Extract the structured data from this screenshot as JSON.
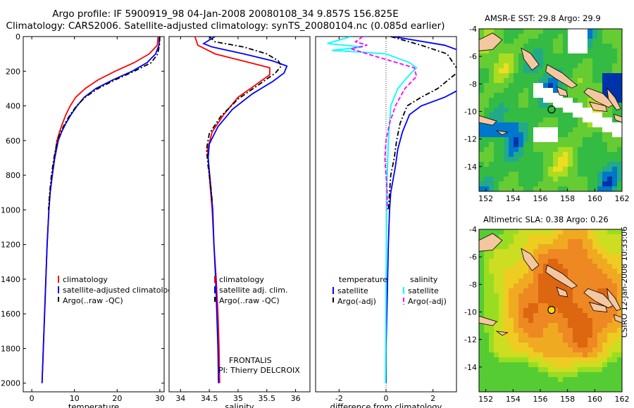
{
  "header": {
    "line1": "Argo profile: IF 5900919_98 04-Jan-2008 20080108_34 9.857S 156.825E",
    "line2": "Climatology: CARS2006. Satellite-adjusted climatology: synTS_20080104.nc (0.085d earlier)"
  },
  "colors": {
    "climatology": "#ff0000",
    "satellite": "#0000ff",
    "argo": "#000000",
    "sat_cyan": "#00ffff",
    "argo_magenta": "#ff00ff"
  },
  "chart_data": [
    {
      "type": "line",
      "xlabel": "temperature",
      "xlim": [
        -2,
        31
      ],
      "ylim": [
        0,
        2050
      ],
      "x_ticks": [
        0,
        10,
        20,
        30
      ],
      "y_ticks": [
        0,
        200,
        400,
        600,
        800,
        1000,
        1200,
        1400,
        1600,
        1800,
        2000
      ],
      "legend": {
        "items": [
          {
            "label": "climatology",
            "color": "#ff0000",
            "dash": "solid"
          },
          {
            "label": "satellite-adjusted climatology",
            "color": "#0000ff",
            "dash": "solid"
          },
          {
            "label": "Argo(..raw -QC)",
            "color": "#000000",
            "dash": "dashdot"
          }
        ]
      },
      "series": [
        {
          "name": "climatology",
          "color": "#ff0000",
          "dash": "solid",
          "points": [
            [
              29.6,
              0
            ],
            [
              29.4,
              50
            ],
            [
              27.5,
              100
            ],
            [
              24,
              150
            ],
            [
              19.5,
              200
            ],
            [
              15.5,
              250
            ],
            [
              12.5,
              300
            ],
            [
              10.3,
              350
            ],
            [
              9,
              400
            ],
            [
              8,
              450
            ],
            [
              7.2,
              500
            ],
            [
              6.5,
              550
            ],
            [
              5.9,
              600
            ],
            [
              5.3,
              700
            ],
            [
              4.8,
              800
            ],
            [
              4.3,
              900
            ],
            [
              4,
              1000
            ],
            [
              3.6,
              1200
            ],
            [
              3.3,
              1400
            ],
            [
              3,
              1600
            ],
            [
              2.7,
              1800
            ],
            [
              2.4,
              2000
            ]
          ]
        },
        {
          "name": "satellite-adjusted climatology",
          "color": "#0000ff",
          "dash": "solid",
          "points": [
            [
              29.9,
              0
            ],
            [
              29.8,
              50
            ],
            [
              29,
              100
            ],
            [
              27,
              150
            ],
            [
              23.5,
              200
            ],
            [
              19,
              250
            ],
            [
              15,
              300
            ],
            [
              12.3,
              350
            ],
            [
              10.6,
              400
            ],
            [
              9.2,
              450
            ],
            [
              8,
              500
            ],
            [
              7,
              550
            ],
            [
              6.2,
              600
            ],
            [
              5.4,
              700
            ],
            [
              4.8,
              800
            ],
            [
              4.3,
              900
            ],
            [
              4,
              1000
            ],
            [
              3.6,
              1200
            ],
            [
              3.3,
              1400
            ],
            [
              3,
              1600
            ],
            [
              2.7,
              1800
            ],
            [
              2.4,
              2000
            ]
          ]
        },
        {
          "name": "Argo(..raw -QC)",
          "color": "#000000",
          "dash": "dashdot",
          "points": [
            [
              30,
              0
            ],
            [
              29.9,
              50
            ],
            [
              29.5,
              100
            ],
            [
              28,
              150
            ],
            [
              24,
              200
            ],
            [
              19.5,
              250
            ],
            [
              15.5,
              300
            ],
            [
              12.5,
              350
            ],
            [
              10.5,
              400
            ],
            [
              9,
              450
            ],
            [
              7.8,
              500
            ],
            [
              6.8,
              550
            ],
            [
              6,
              600
            ],
            [
              5.2,
              700
            ],
            [
              4.6,
              800
            ],
            [
              4.2,
              900
            ],
            [
              3.9,
              1000
            ]
          ]
        }
      ]
    },
    {
      "type": "line",
      "xlabel": "salinity",
      "xlim": [
        33.8,
        36.25
      ],
      "ylim": [
        0,
        2050
      ],
      "x_ticks": [
        34,
        34.5,
        35,
        35.5,
        36
      ],
      "legend": {
        "items": [
          {
            "label": "climatology",
            "color": "#ff0000",
            "dash": "solid"
          },
          {
            "label": "satellite adj. clim.",
            "color": "#0000ff",
            "dash": "solid"
          },
          {
            "label": "Argo(..raw -QC)",
            "color": "#000000",
            "dash": "dashdot"
          }
        ]
      },
      "annotation": {
        "line1": "FRONTALIS",
        "line2": "PI: Thierry DELCROIX"
      },
      "series": [
        {
          "name": "climatology",
          "color": "#ff0000",
          "dash": "solid",
          "points": [
            [
              34.25,
              0
            ],
            [
              34.3,
              50
            ],
            [
              34.6,
              100
            ],
            [
              35.2,
              150
            ],
            [
              35.55,
              180
            ],
            [
              35.55,
              220
            ],
            [
              35.3,
              280
            ],
            [
              35,
              350
            ],
            [
              34.75,
              450
            ],
            [
              34.55,
              550
            ],
            [
              34.47,
              650
            ],
            [
              34.5,
              800
            ],
            [
              34.55,
              1000
            ],
            [
              34.58,
              1200
            ],
            [
              34.62,
              1400
            ],
            [
              34.65,
              1600
            ],
            [
              34.67,
              1800
            ],
            [
              34.68,
              2000
            ]
          ]
        },
        {
          "name": "satellite adj. clim.",
          "color": "#0000ff",
          "dash": "solid",
          "points": [
            [
              34.6,
              0
            ],
            [
              34.4,
              40
            ],
            [
              34.55,
              60
            ],
            [
              35.1,
              100
            ],
            [
              35.6,
              140
            ],
            [
              35.85,
              170
            ],
            [
              35.8,
              210
            ],
            [
              35.6,
              260
            ],
            [
              35.25,
              330
            ],
            [
              34.9,
              420
            ],
            [
              34.65,
              520
            ],
            [
              34.5,
              620
            ],
            [
              34.48,
              700
            ],
            [
              34.52,
              850
            ],
            [
              34.56,
              1000
            ],
            [
              34.58,
              1200
            ],
            [
              34.61,
              1400
            ],
            [
              34.63,
              1600
            ],
            [
              34.65,
              1800
            ],
            [
              34.66,
              2000
            ]
          ]
        },
        {
          "name": "Argo(..raw -QC)",
          "color": "#000000",
          "dash": "dashdot",
          "points": [
            [
              34.5,
              0
            ],
            [
              34.6,
              30
            ],
            [
              35.1,
              60
            ],
            [
              35.5,
              100
            ],
            [
              35.7,
              140
            ],
            [
              35.75,
              170
            ],
            [
              35.65,
              210
            ],
            [
              35.35,
              280
            ],
            [
              35,
              360
            ],
            [
              34.7,
              460
            ],
            [
              34.5,
              560
            ],
            [
              34.45,
              650
            ],
            [
              34.48,
              750
            ],
            [
              34.52,
              850
            ],
            [
              34.55,
              950
            ]
          ]
        }
      ]
    },
    {
      "type": "line",
      "xlabel": "difference from climatology",
      "xlim": [
        -3,
        3
      ],
      "ylim": [
        0,
        2050
      ],
      "x_ticks": [
        -2,
        0,
        2
      ],
      "zero_line": true,
      "legend": {
        "items": [
          {
            "group": "temperature",
            "label": "satellite",
            "color": "#0000ff",
            "dash": "solid"
          },
          {
            "group": "temperature",
            "label": "Argo(-adj)",
            "color": "#000000",
            "dash": "dashdot"
          },
          {
            "group": "salinity",
            "label": "satellite",
            "color": "#00ffff",
            "dash": "solid"
          },
          {
            "group": "salinity",
            "label": "Argo(-adj)",
            "color": "#ff00ff",
            "dash": "dashed"
          }
        ],
        "temp_header": "temperature",
        "sal_header": "salinity"
      },
      "series": [
        {
          "name": "temperature satellite",
          "color": "#0000ff",
          "dash": "solid",
          "points": [
            [
              0.3,
              0
            ],
            [
              2.5,
              50
            ],
            [
              3.5,
              100
            ],
            [
              3.5,
              200
            ],
            [
              3.2,
              300
            ],
            [
              2.5,
              350
            ],
            [
              1.5,
              400
            ],
            [
              1,
              450
            ],
            [
              0.7,
              550
            ],
            [
              0.5,
              650
            ],
            [
              0.4,
              750
            ],
            [
              0.2,
              900
            ],
            [
              0.15,
              1000
            ],
            [
              0.1,
              1200
            ],
            [
              0.05,
              1500
            ],
            [
              0,
              1800
            ],
            [
              0,
              2000
            ]
          ]
        },
        {
          "name": "temperature Argo(-adj)",
          "color": "#000000",
          "dash": "dashdot",
          "points": [
            [
              0.2,
              0
            ],
            [
              1.5,
              50
            ],
            [
              2.6,
              100
            ],
            [
              3.1,
              200
            ],
            [
              2.2,
              300
            ],
            [
              1.5,
              350
            ],
            [
              0.9,
              400
            ],
            [
              0.6,
              500
            ],
            [
              0.45,
              600
            ],
            [
              0.35,
              700
            ],
            [
              0.2,
              800
            ],
            [
              0.15,
              900
            ],
            [
              0.1,
              1000
            ]
          ]
        },
        {
          "name": "salinity satellite",
          "color": "#00ffff",
          "dash": "solid",
          "points": [
            [
              -1.5,
              0
            ],
            [
              -2.5,
              40
            ],
            [
              -1,
              60
            ],
            [
              -2.3,
              80
            ],
            [
              -1,
              90
            ],
            [
              0,
              100
            ],
            [
              1,
              150
            ],
            [
              1.3,
              180
            ],
            [
              1,
              220
            ],
            [
              0.5,
              300
            ],
            [
              0.2,
              400
            ],
            [
              0.1,
              600
            ],
            [
              0.05,
              800
            ],
            [
              0.02,
              1000
            ],
            [
              0,
              1500
            ],
            [
              -0.02,
              2000
            ]
          ]
        },
        {
          "name": "salinity Argo(-adj)",
          "color": "#ff00ff",
          "dash": "dashed",
          "points": [
            [
              -1,
              0
            ],
            [
              -1.3,
              30
            ],
            [
              -0.8,
              50
            ],
            [
              -1.5,
              70
            ],
            [
              -0.8,
              100
            ],
            [
              0.2,
              140
            ],
            [
              1.2,
              180
            ],
            [
              1.3,
              230
            ],
            [
              0.8,
              300
            ],
            [
              0.4,
              400
            ],
            [
              0.15,
              500
            ],
            [
              0,
              600
            ],
            [
              -0.05,
              700
            ],
            [
              0,
              800
            ],
            [
              0.05,
              900
            ],
            [
              0.05,
              1000
            ]
          ]
        }
      ]
    },
    {
      "type": "heatmap",
      "title": "AMSR-E SST: 29.8 Argo: 29.9",
      "xlim": [
        151.5,
        162
      ],
      "ylim": [
        -15.8,
        -4
      ],
      "x_ticks": [
        152,
        154,
        156,
        158,
        160,
        162
      ],
      "y_ticks": [
        -4,
        -6,
        -8,
        -10,
        -12,
        -14
      ],
      "float_position": [
        156.825,
        -9.857
      ]
    },
    {
      "type": "heatmap",
      "title": "Altimetric SLA: 0.38 Argo: 0.26",
      "xlim": [
        151.5,
        162
      ],
      "ylim": [
        -15.8,
        -4
      ],
      "x_ticks": [
        152,
        154,
        156,
        158,
        160,
        162
      ],
      "y_ticks": [
        -4,
        -6,
        -8,
        -10,
        -12,
        -14
      ],
      "float_position": [
        156.825,
        -9.857
      ]
    }
  ],
  "credit": "CSIRO 12-Jan-2008 10:33:06"
}
